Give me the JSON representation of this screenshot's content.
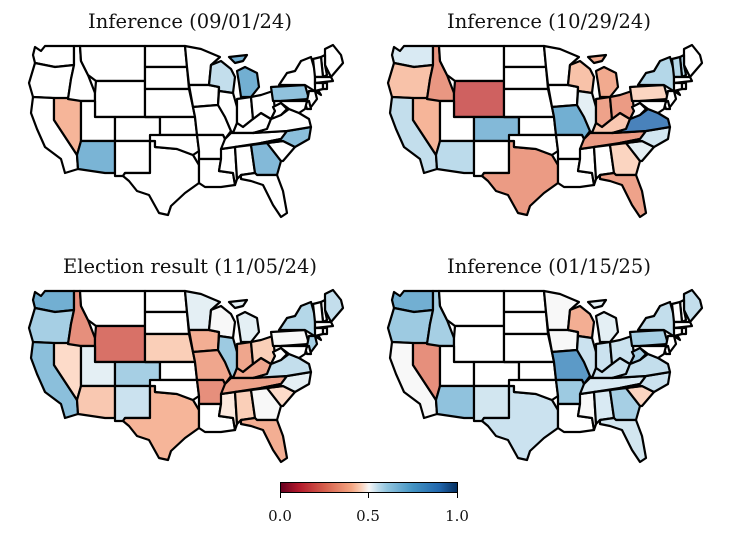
{
  "panels": [
    {
      "title": "Inference (09/01/24)"
    },
    {
      "title": "Inference (10/29/24)"
    },
    {
      "title": "Election result (11/05/24)"
    },
    {
      "title": "Inference (01/15/25)"
    }
  ],
  "colorbar": {
    "ticks": [
      "0.0",
      "0.5",
      "1.0"
    ],
    "tick_values": [
      0.0,
      0.5,
      1.0
    ],
    "colormap": "red-white-blue diverging",
    "low_color": "#67001f",
    "mid_color": "#f7f7f7",
    "high_color": "#053061"
  },
  "colors": {
    "unshaded": "#ffffff",
    "border": "#000000"
  },
  "states": [
    "WA",
    "OR",
    "CA",
    "NV",
    "ID",
    "MT",
    "WY",
    "UT",
    "AZ",
    "CO",
    "NM",
    "TX",
    "ND",
    "SD",
    "NE",
    "KS",
    "OK",
    "MN",
    "IA",
    "MO",
    "AR",
    "LA",
    "WI",
    "IL",
    "MS",
    "MI",
    "IN",
    "KY",
    "TN",
    "AL",
    "OH",
    "GA",
    "FL",
    "SC",
    "NC",
    "VA",
    "WV",
    "PA",
    "NY",
    "ME",
    "NH",
    "VT",
    "MA",
    "CT",
    "RI",
    "NJ",
    "DE",
    "MD"
  ],
  "chart_data": [
    {
      "type": "choropleth",
      "title": "Inference (09/01/24)",
      "color_range": [
        0,
        1
      ],
      "values": {
        "NV": 0.4,
        "AZ": 0.7,
        "MI": 0.72,
        "WI": 0.56,
        "PA": 0.65,
        "NC": 0.66,
        "GA": 0.68
      }
    },
    {
      "type": "choropleth",
      "title": "Inference (10/29/24)",
      "color_range": [
        0,
        1
      ],
      "values": {
        "WA": 0.53,
        "OR": 0.42,
        "CA": 0.56,
        "NV": 0.4,
        "ID": 0.32,
        "WY": 0.18,
        "AZ": 0.57,
        "CO": 0.68,
        "TX": 0.33,
        "MO": 0.72,
        "WI": 0.42,
        "MI": 0.37,
        "IL": 0.52,
        "IN": 0.35,
        "OH": 0.33,
        "KY": 0.43,
        "TN": 0.33,
        "SC": 0.52,
        "NC": 0.54,
        "GA": 0.45,
        "FL": 0.35,
        "VA": 0.9,
        "PA": 0.45,
        "NY": 0.58,
        "VT": 0.58,
        "NH": 0.58
      }
    },
    {
      "type": "choropleth",
      "title": "Election result (11/05/24)",
      "color_range": [
        0,
        1
      ],
      "values": {
        "WA": 0.72,
        "OR": 0.6,
        "CA": 0.66,
        "NV": 0.46,
        "ID": 0.3,
        "WY": 0.22,
        "UT": 0.52,
        "CO": 0.6,
        "AZ": 0.43,
        "NM": 0.55,
        "TX": 0.4,
        "NE": 0.44,
        "MN": 0.52,
        "IA": 0.38,
        "MO": 0.36,
        "AR": 0.3,
        "WI": 0.5,
        "MI": 0.52,
        "IL": 0.62,
        "IN": 0.36,
        "OH": 0.44,
        "KY": 0.36,
        "TN": 0.35,
        "MS": 0.48,
        "AL": 0.44,
        "GA": 0.5,
        "SC": 0.46,
        "NC": 0.52,
        "FL": 0.38,
        "VA": 0.56,
        "PA": 0.5,
        "NY": 0.58,
        "NJ": 0.6,
        "ME": 0.56
      }
    },
    {
      "type": "choropleth",
      "title": "Inference (01/15/25)",
      "color_range": [
        0,
        1
      ],
      "values": {
        "WA": 0.72,
        "OR": 0.62,
        "CA": 0.5,
        "NV": 0.3,
        "ID": 0.6,
        "AZ": 0.65,
        "NM": 0.54,
        "TX": 0.55,
        "MN": 0.5,
        "WI": 0.38,
        "IA": 0.5,
        "MO": 0.8,
        "AR": 0.62,
        "MI": 0.52,
        "IL": 0.55,
        "IN": 0.55,
        "OH": 0.55,
        "KY": 0.55,
        "TN": 0.53,
        "MS": 0.5,
        "AL": 0.53,
        "GA": 0.6,
        "SC": 0.45,
        "NC": 0.55,
        "FL": 0.54,
        "VA": 0.56,
        "WV": 0.6,
        "PA": 0.6,
        "NY": 0.56,
        "ME": 0.56
      }
    }
  ]
}
